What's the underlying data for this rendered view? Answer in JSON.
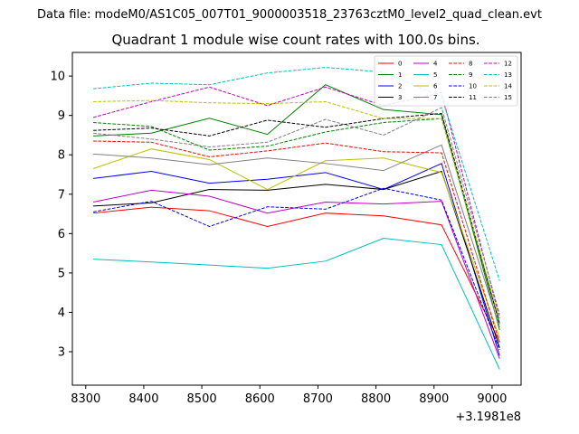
{
  "suptitle": "Data file: modeM0/AS1C05_007T01_9000003518_23763cztM0_level2_quad_clean.evt",
  "chart_data": {
    "type": "line",
    "title": "Quadrant 1 module wise count rates with 100.0s bins.",
    "xlabel": "",
    "ylabel": "",
    "x_offset_label": "+3.1981e8",
    "x": [
      8313,
      8413,
      8513,
      8613,
      8713,
      8813,
      8913,
      9013
    ],
    "xlim": [
      8277,
      9050
    ],
    "ylim": [
      2.15,
      10.6
    ],
    "xticks": [
      8300,
      8400,
      8500,
      8600,
      8700,
      8800,
      8900,
      9000
    ],
    "yticks": [
      3,
      4,
      5,
      6,
      7,
      8,
      9,
      10
    ],
    "legend_position": "top-right",
    "legend_columns": 4,
    "series": [
      {
        "name": "0",
        "color": "#ff0000",
        "dash": "solid",
        "values": [
          6.52,
          6.67,
          6.58,
          6.18,
          6.52,
          6.45,
          6.22,
          3.25
        ]
      },
      {
        "name": "1",
        "color": "#008000",
        "dash": "solid",
        "values": [
          8.48,
          8.55,
          8.93,
          8.52,
          9.78,
          9.15,
          9.02,
          3.55
        ]
      },
      {
        "name": "2",
        "color": "#0000ff",
        "dash": "solid",
        "values": [
          7.4,
          7.58,
          7.28,
          7.38,
          7.55,
          7.12,
          7.78,
          2.9
        ]
      },
      {
        "name": "3",
        "color": "#000000",
        "dash": "solid",
        "values": [
          6.7,
          6.78,
          7.12,
          7.1,
          7.25,
          7.12,
          7.58,
          3.1
        ]
      },
      {
        "name": "4",
        "color": "#bf00bf",
        "dash": "solid",
        "values": [
          6.8,
          7.1,
          6.95,
          6.52,
          6.8,
          6.75,
          6.82,
          2.82
        ]
      },
      {
        "name": "5",
        "color": "#00bfbf",
        "dash": "solid",
        "values": [
          5.35,
          5.28,
          5.2,
          5.12,
          5.3,
          5.88,
          5.72,
          2.55
        ]
      },
      {
        "name": "6",
        "color": "#bfbf00",
        "dash": "solid",
        "values": [
          7.65,
          8.15,
          7.88,
          7.12,
          7.85,
          7.92,
          7.55,
          3.35
        ]
      },
      {
        "name": "7",
        "color": "#808080",
        "dash": "solid",
        "values": [
          8.02,
          7.92,
          7.75,
          7.92,
          7.78,
          7.6,
          8.25,
          3.62
        ]
      },
      {
        "name": "8",
        "color": "#ff0000",
        "dash": "dashed",
        "values": [
          8.35,
          8.32,
          7.95,
          8.1,
          8.3,
          8.08,
          8.05,
          3.22
        ]
      },
      {
        "name": "9",
        "color": "#008000",
        "dash": "dashed",
        "values": [
          8.82,
          8.72,
          8.12,
          8.22,
          8.58,
          8.82,
          8.92,
          3.72
        ]
      },
      {
        "name": "10",
        "color": "#0000ff",
        "dash": "dashed",
        "values": [
          6.55,
          6.82,
          6.18,
          6.68,
          6.62,
          7.15,
          6.85,
          3.05
        ]
      },
      {
        "name": "11",
        "color": "#000000",
        "dash": "dashed",
        "values": [
          8.62,
          8.68,
          8.48,
          8.88,
          8.7,
          8.92,
          9.05,
          3.7
        ]
      },
      {
        "name": "12",
        "color": "#bf00bf",
        "dash": "dashed",
        "values": [
          8.95,
          9.35,
          9.72,
          9.25,
          9.72,
          9.25,
          9.58,
          3.85
        ]
      },
      {
        "name": "13",
        "color": "#00bfbf",
        "dash": "dashed",
        "values": [
          9.68,
          9.82,
          9.78,
          10.08,
          10.22,
          10.1,
          9.48,
          4.8
        ]
      },
      {
        "name": "14",
        "color": "#bfbf00",
        "dash": "dashed",
        "values": [
          9.35,
          9.38,
          9.32,
          9.3,
          9.35,
          8.92,
          8.92,
          3.8
        ]
      },
      {
        "name": "15",
        "color": "#808080",
        "dash": "dashed",
        "values": [
          8.55,
          8.4,
          8.2,
          8.32,
          8.9,
          8.5,
          9.2,
          3.95
        ]
      }
    ]
  }
}
